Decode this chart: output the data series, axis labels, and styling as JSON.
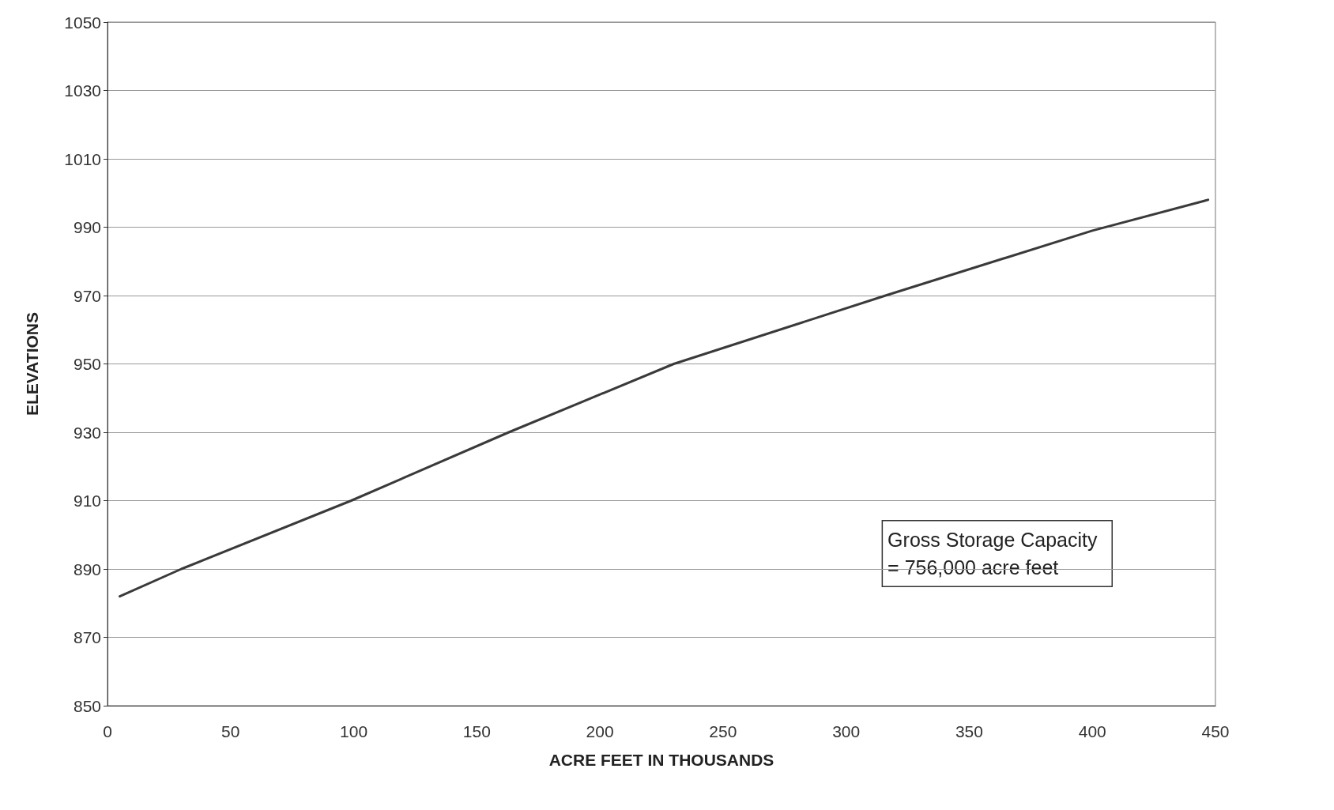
{
  "chart_data": {
    "type": "line",
    "xlabel": "ACRE FEET IN THOUSANDS",
    "ylabel": "ELEVATIONS",
    "x": [
      5,
      30,
      99,
      163,
      230,
      316,
      400,
      447
    ],
    "series": [
      {
        "color": "#3a3a3a",
        "values": [
          882,
          890,
          910,
          930,
          950,
          970,
          989,
          998
        ]
      }
    ],
    "xlim": [
      0,
      450
    ],
    "xticks": [
      0,
      50,
      100,
      150,
      200,
      250,
      300,
      350,
      400,
      450
    ],
    "ylim": [
      850,
      1050
    ],
    "yticks": [
      850,
      870,
      890,
      910,
      930,
      950,
      970,
      990,
      1010,
      1030,
      1050
    ],
    "grid": "y",
    "marker": "none",
    "line_style": "solid",
    "annotations": [
      "Gross Storage Capacity\n= 756,000 acre feet"
    ]
  }
}
